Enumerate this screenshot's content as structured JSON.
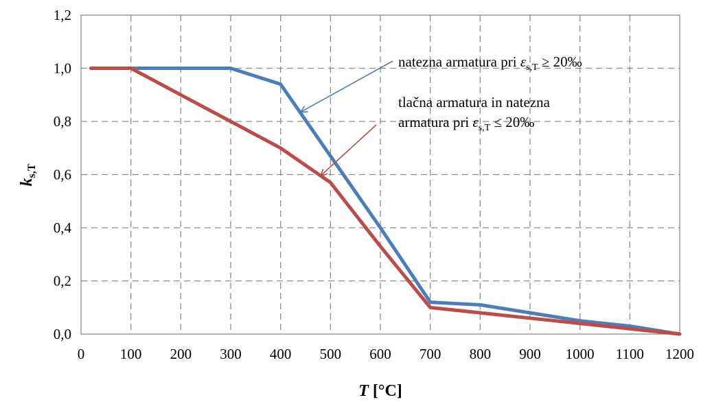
{
  "chart_data": {
    "type": "line",
    "xlabel": {
      "main": "T",
      "rest": " [°C]"
    },
    "ylabel": {
      "main": "k",
      "sub": "s,T"
    },
    "xlim": [
      0,
      1200
    ],
    "ylim": [
      0,
      1.2
    ],
    "x_ticks": [
      "0",
      "100",
      "200",
      "300",
      "400",
      "500",
      "600",
      "700",
      "800",
      "900",
      "1000",
      "1100",
      "1200"
    ],
    "y_ticks": [
      "0,0",
      "0,2",
      "0,4",
      "0,6",
      "0,8",
      "1,0",
      "1,2"
    ],
    "grid": true,
    "legend": "none",
    "series": [
      {
        "color": "#4a7ebb",
        "x": [
          20,
          100,
          200,
          300,
          400,
          500,
          600,
          700,
          800,
          900,
          1000,
          1100,
          1200
        ],
        "y": [
          1.0,
          1.0,
          1.0,
          1.0,
          0.94,
          0.67,
          0.4,
          0.12,
          0.11,
          0.08,
          0.05,
          0.03,
          0.0
        ]
      },
      {
        "color": "#be4b48",
        "x": [
          20,
          100,
          200,
          300,
          400,
          500,
          600,
          700,
          800,
          900,
          1000,
          1100,
          1200
        ],
        "y": [
          1.0,
          1.0,
          0.9,
          0.8,
          0.7,
          0.57,
          0.33,
          0.1,
          0.08,
          0.06,
          0.04,
          0.02,
          0.0
        ]
      }
    ],
    "annotations": [
      {
        "color": "#4a7ebb",
        "prefix": "natezna armatura pri ",
        "sym": "ε",
        "sub": "s,T",
        "suffix": " ≥ 20‰",
        "arrow_to": [
          440,
          0.835
        ]
      },
      {
        "color": "#be4b48",
        "line1": "tlačna armatura in natezna",
        "prefix": "armatura pri ",
        "sym": "ε",
        "sub": "s,T",
        "suffix": " ≤ 20‰",
        "arrow_to": [
          480,
          0.595
        ]
      }
    ]
  }
}
